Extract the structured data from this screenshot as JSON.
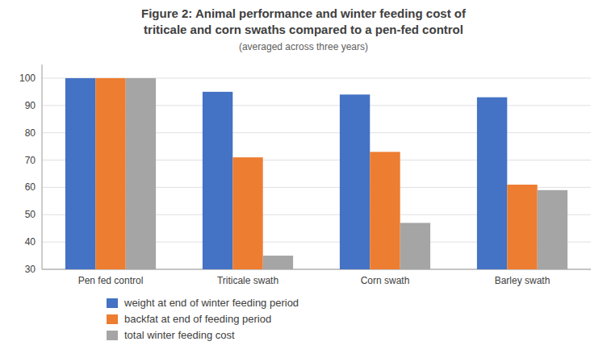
{
  "chart_data": {
    "type": "bar",
    "title": "Figure 2: Animal performance and winter feeding cost of\ntriticale and corn swaths compared to a pen-fed control",
    "subtitle": "(averaged across three years)",
    "categories": [
      "Pen fed control",
      "Triticale swath",
      "Corn swath",
      "Barley swath"
    ],
    "series": [
      {
        "name": "weight at end of winter feeding period",
        "color": "#4472C4",
        "values": [
          100,
          95,
          94,
          93
        ]
      },
      {
        "name": "backfat at end of feeding period",
        "color": "#ED7D31",
        "values": [
          100,
          71,
          73,
          61
        ]
      },
      {
        "name": "total winter feeding cost",
        "color": "#A5A5A5",
        "values": [
          100,
          35,
          47,
          59
        ]
      }
    ],
    "ylim": [
      30,
      105
    ],
    "yticks": [
      30,
      40,
      50,
      60,
      70,
      80,
      90,
      100
    ],
    "grid": true,
    "legend": "bottom"
  }
}
